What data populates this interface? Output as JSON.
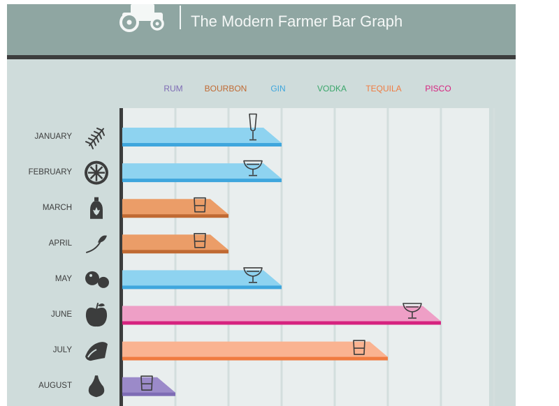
{
  "header": {
    "subtitle": "The Modern Farmer Bar Graph"
  },
  "legend": [
    {
      "name": "RUM",
      "color": "#7e6cb5"
    },
    {
      "name": "BOURBON",
      "color": "#c06a33"
    },
    {
      "name": "GIN",
      "color": "#3fa6dd"
    },
    {
      "name": "VODKA",
      "color": "#3aa66a"
    },
    {
      "name": "TEQUILA",
      "color": "#f07b40"
    },
    {
      "name": "PISCO",
      "color": "#d6227f"
    }
  ],
  "chart_data": {
    "type": "bar",
    "orientation": "horizontal",
    "categories": [
      "JANUARY",
      "FEBRUARY",
      "MARCH",
      "APRIL",
      "MAY",
      "JUNE",
      "JULY",
      "AUGUST"
    ],
    "values": [
      3,
      3,
      2,
      2,
      3,
      6,
      5,
      1
    ],
    "spirits": [
      "GIN",
      "GIN",
      "BOURBON",
      "BOURBON",
      "GIN",
      "PISCO",
      "TEQUILA",
      "RUM"
    ],
    "glasses": [
      "flute",
      "coupe",
      "rocks",
      "rocks",
      "coupe",
      "coupe",
      "rocks",
      "rocks"
    ],
    "month_icons": [
      "herb-icon",
      "citrus-slice-icon",
      "maple-syrup-icon",
      "leaf-sprig-icon",
      "berries-icon",
      "apple-icon",
      "ham-icon",
      "fig-icon"
    ],
    "xlim": [
      0,
      7
    ],
    "grid": true,
    "legend_position": "top"
  }
}
